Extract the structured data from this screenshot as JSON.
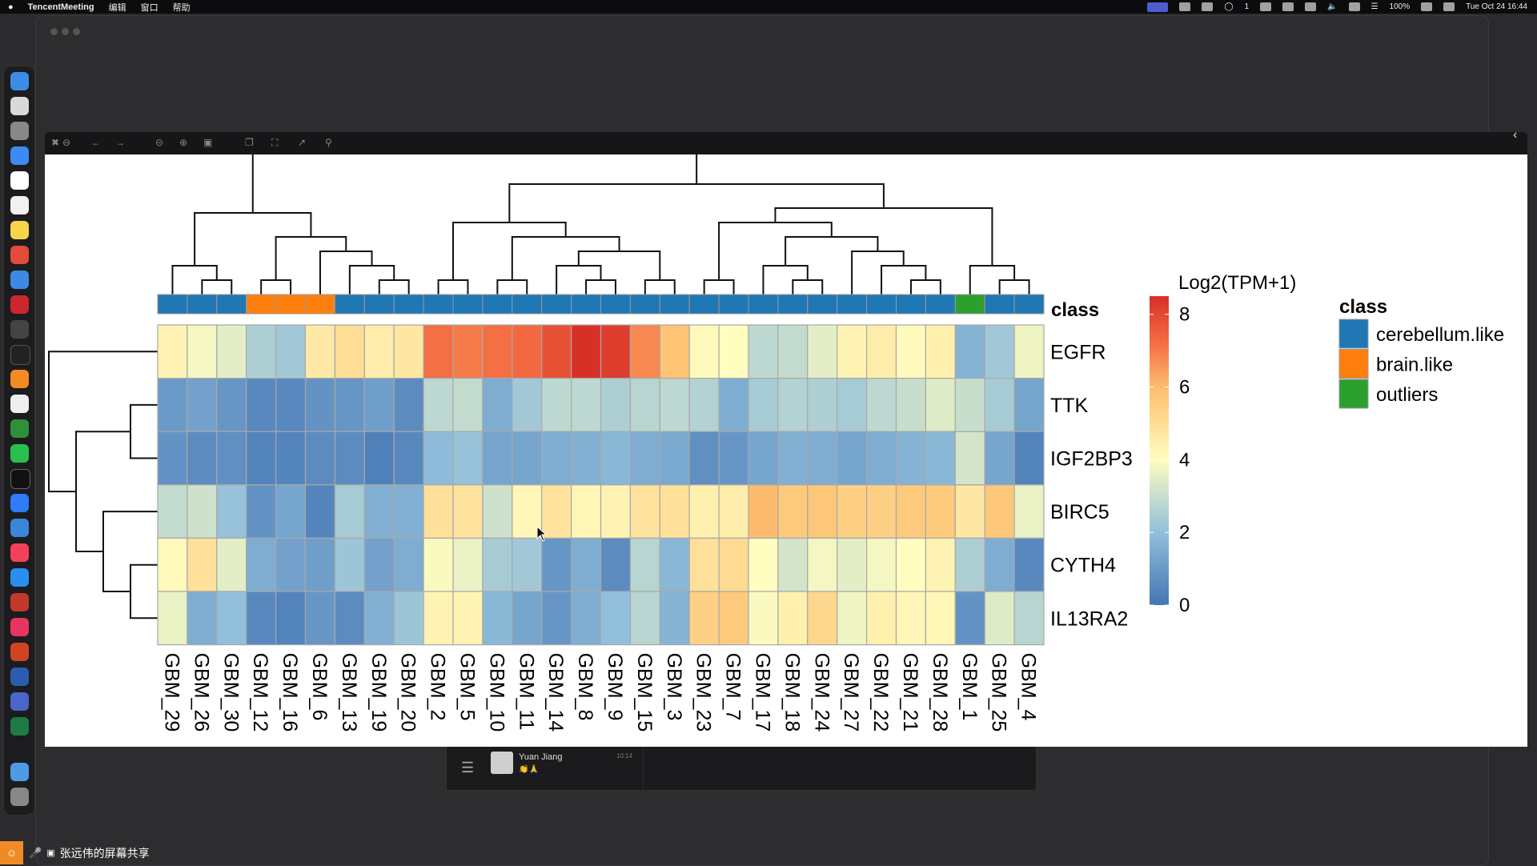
{
  "menubar": {
    "app_name": "TencentMeeting",
    "menus": [
      "编辑",
      "窗口",
      "帮助"
    ],
    "wechat_count": "1",
    "battery": "100%",
    "datetime": "Tue Oct 24  16:44"
  },
  "chat": {
    "name": "Yuan Jiang",
    "emoji": "👏🙏",
    "time": "10:14"
  },
  "sharebar": {
    "label": "张远伟的屏幕共享"
  },
  "chart_data": {
    "type": "heatmap",
    "legend_title": "Log2(TPM+1)",
    "colorbar_ticks": [
      0,
      2,
      4,
      6,
      8
    ],
    "colorbar_range": [
      0,
      8.5
    ],
    "annotation_label": "class",
    "class_legend": {
      "title": "class",
      "entries": [
        {
          "name": "cerebellum.like",
          "color": "#1f77b4"
        },
        {
          "name": "brain.like",
          "color": "#ff7f0e"
        },
        {
          "name": "outliers",
          "color": "#2ca02c"
        }
      ]
    },
    "genes": [
      "EGFR",
      "TTK",
      "IGF2BP3",
      "BIRC5",
      "CYTH4",
      "IL13RA2"
    ],
    "samples": [
      "GBM_29",
      "GBM_26",
      "GBM_30",
      "GBM_12",
      "GBM_16",
      "GBM_6",
      "GBM_13",
      "GBM_19",
      "GBM_20",
      "GBM_2",
      "GBM_5",
      "GBM_10",
      "GBM_11",
      "GBM_14",
      "GBM_8",
      "GBM_9",
      "GBM_15",
      "GBM_3",
      "GBM_23",
      "GBM_7",
      "GBM_17",
      "GBM_18",
      "GBM_24",
      "GBM_27",
      "GBM_22",
      "GBM_21",
      "GBM_28",
      "GBM_1",
      "GBM_25",
      "GBM_4"
    ],
    "sample_class": [
      "cerebellum.like",
      "cerebellum.like",
      "cerebellum.like",
      "brain.like",
      "brain.like",
      "brain.like",
      "cerebellum.like",
      "cerebellum.like",
      "cerebellum.like",
      "cerebellum.like",
      "cerebellum.like",
      "cerebellum.like",
      "cerebellum.like",
      "cerebellum.like",
      "cerebellum.like",
      "cerebellum.like",
      "cerebellum.like",
      "cerebellum.like",
      "cerebellum.like",
      "cerebellum.like",
      "cerebellum.like",
      "cerebellum.like",
      "cerebellum.like",
      "cerebellum.like",
      "cerebellum.like",
      "cerebellum.like",
      "cerebellum.like",
      "outliers",
      "cerebellum.like",
      "cerebellum.like"
    ],
    "values": [
      [
        4.3,
        3.8,
        3.5,
        2.5,
        2.3,
        4.6,
        5.0,
        4.5,
        4.7,
        7.2,
        7.0,
        7.2,
        7.3,
        7.8,
        8.5,
        8.2,
        6.8,
        5.8,
        4.1,
        4.0,
        2.8,
        2.9,
        3.5,
        4.3,
        4.5,
        4.1,
        4.4,
        1.7,
        2.3,
        3.7
      ],
      [
        1.0,
        1.2,
        0.9,
        0.5,
        0.5,
        0.8,
        0.9,
        1.1,
        0.6,
        2.8,
        2.9,
        1.5,
        2.3,
        2.8,
        2.8,
        2.5,
        2.7,
        2.8,
        2.6,
        1.5,
        2.4,
        2.6,
        2.5,
        2.4,
        2.8,
        3.0,
        3.4,
        3.0,
        2.4,
        1.3
      ],
      [
        0.8,
        0.6,
        0.7,
        0.4,
        0.4,
        0.6,
        0.6,
        0.3,
        0.5,
        1.9,
        2.1,
        1.3,
        1.3,
        1.5,
        1.6,
        1.8,
        1.5,
        1.4,
        0.7,
        0.9,
        1.3,
        1.6,
        1.5,
        1.3,
        1.5,
        1.7,
        1.8,
        3.2,
        1.3,
        0.4
      ],
      [
        2.9,
        3.1,
        2.1,
        0.8,
        1.3,
        0.4,
        2.4,
        1.6,
        1.6,
        4.9,
        4.8,
        3.1,
        4.2,
        4.8,
        4.2,
        4.3,
        4.8,
        4.9,
        4.4,
        4.5,
        6.0,
        5.6,
        5.7,
        5.4,
        5.4,
        5.6,
        5.6,
        4.7,
        5.7,
        3.6
      ],
      [
        4.1,
        4.9,
        3.5,
        1.5,
        1.2,
        1.1,
        2.2,
        1.2,
        1.5,
        3.9,
        3.6,
        2.4,
        2.3,
        0.9,
        1.5,
        0.6,
        2.7,
        1.8,
        4.9,
        5.1,
        4.0,
        3.2,
        3.8,
        3.5,
        3.8,
        4.0,
        4.3,
        2.5,
        1.5,
        0.5
      ],
      [
        3.6,
        1.5,
        2.0,
        0.5,
        0.4,
        0.9,
        0.6,
        1.6,
        2.2,
        4.3,
        4.3,
        1.8,
        1.3,
        0.9,
        1.5,
        2.0,
        2.7,
        1.7,
        5.4,
        5.6,
        3.9,
        4.4,
        5.2,
        3.7,
        4.4,
        4.2,
        4.2,
        0.8,
        3.4,
        2.7
      ]
    ]
  }
}
